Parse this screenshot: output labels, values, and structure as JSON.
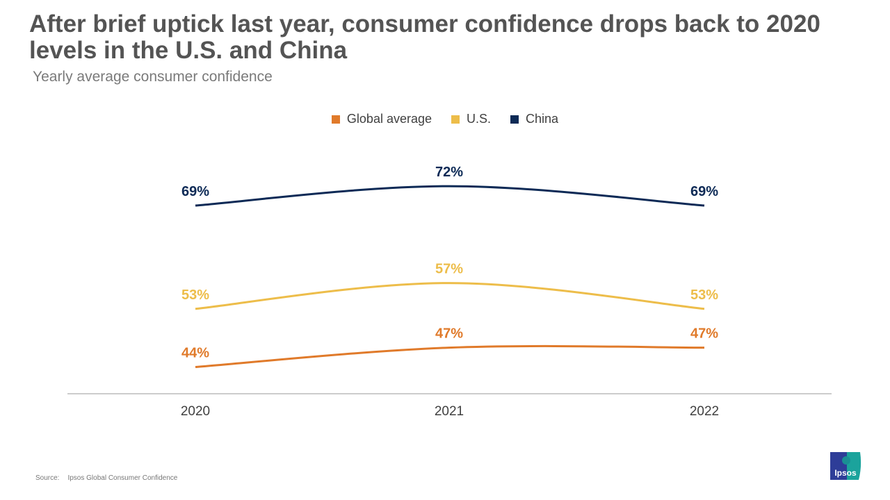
{
  "title": "After brief uptick last year, consumer confidence drops back to 2020 levels in the U.S. and China",
  "subtitle": "Yearly average consumer confidence",
  "source": {
    "label": "Source:",
    "text": "Ipsos Global Consumer Confidence"
  },
  "logo": "Ipsos",
  "chart_data": {
    "type": "line",
    "x": [
      "2020",
      "2021",
      "2022"
    ],
    "legend_position": "top",
    "grid": false,
    "series": [
      {
        "name": "Global average",
        "color": "#E07A2A",
        "values": [
          44,
          47,
          47
        ],
        "labels": [
          "44%",
          "47%",
          "47%"
        ]
      },
      {
        "name": "U.S.",
        "color": "#EDBD4A",
        "values": [
          53,
          57,
          53
        ],
        "labels": [
          "53%",
          "57%",
          "53%"
        ]
      },
      {
        "name": "China",
        "color": "#0D2A56",
        "values": [
          69,
          72,
          69
        ],
        "labels": [
          "69%",
          "72%",
          "69%"
        ]
      }
    ]
  }
}
